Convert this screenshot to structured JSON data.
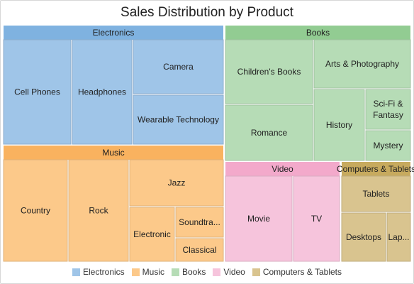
{
  "chart_data": {
    "type": "treemap",
    "title": "Sales Distribution by Product",
    "groups": [
      {
        "name": "Electronics",
        "color": "#9fc5e8",
        "header_color": "#7fb2e0",
        "items": [
          {
            "name": "Cell Phones",
            "value": 25
          },
          {
            "name": "Headphones",
            "value": 22
          },
          {
            "name": "Camera",
            "value": 19
          },
          {
            "name": "Wearable Technology",
            "value": 18
          }
        ]
      },
      {
        "name": "Books",
        "color": "#b6dcb6",
        "header_color": "#92cc92",
        "items": [
          {
            "name": "Children's Books",
            "value": 18
          },
          {
            "name": "Romance",
            "value": 16
          },
          {
            "name": "Arts & Photography",
            "value": 17
          },
          {
            "name": "History",
            "value": 12
          },
          {
            "name": "Sci-Fi & Fantasy",
            "value": 7
          },
          {
            "name": "Mystery",
            "value": 5
          }
        ]
      },
      {
        "name": "Music",
        "color": "#fcc98a",
        "header_color": "#f9b25f",
        "items": [
          {
            "name": "Country",
            "value": 21
          },
          {
            "name": "Rock",
            "value": 19
          },
          {
            "name": "Jazz",
            "value": 16
          },
          {
            "name": "Electronic",
            "value": 9
          },
          {
            "name": "Soundtra...",
            "value": 9
          },
          {
            "name": "Classical",
            "value": 5
          }
        ]
      },
      {
        "name": "Video",
        "color": "#f6c4dc",
        "header_color": "#f3a9cb",
        "items": [
          {
            "name": "Movie",
            "value": 16
          },
          {
            "name": "TV",
            "value": 12
          }
        ]
      },
      {
        "name": "Computers & Tablets",
        "color": "#d9c48f",
        "header_color": "#c7aa5e",
        "items": [
          {
            "name": "Tablets",
            "value": 12
          },
          {
            "name": "Desktops",
            "value": 9
          },
          {
            "name": "Lap...",
            "value": 5
          }
        ]
      }
    ],
    "legend": [
      {
        "name": "Electronics",
        "color": "#9fc5e8"
      },
      {
        "name": "Music",
        "color": "#fcc98a"
      },
      {
        "name": "Books",
        "color": "#b6dcb6"
      },
      {
        "name": "Video",
        "color": "#f6c4dc"
      },
      {
        "name": "Computers & Tablets",
        "color": "#d9c48f"
      }
    ],
    "legend_position": "bottom"
  }
}
